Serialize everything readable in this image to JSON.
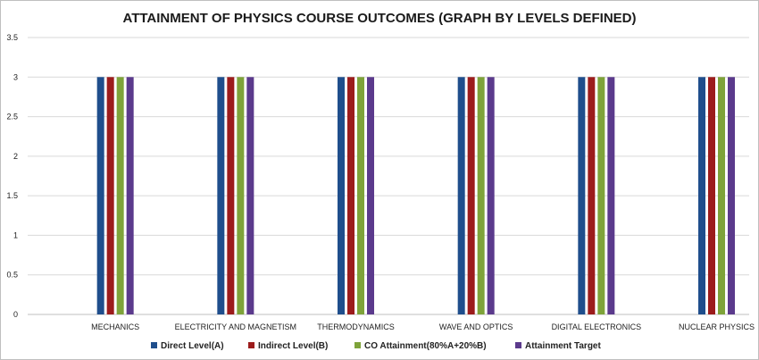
{
  "chart_data": {
    "type": "bar",
    "title": "ATTAINMENT OF PHYSICS COURSE OUTCOMES (GRAPH BY LEVELS DEFINED)",
    "categories": [
      "MECHANICS",
      "ELECTRICITY AND MAGNETISM",
      "THERMODYNAMICS",
      "WAVE AND OPTICS",
      "DIGITAL ELECTRONICS",
      "NUCLEAR PHYSICS"
    ],
    "series": [
      {
        "name": "Direct Level(A)",
        "color": "#1f4e8c",
        "values": [
          3,
          3,
          3,
          3,
          3,
          3
        ]
      },
      {
        "name": "Indirect Level(B)",
        "color": "#9c1c1c",
        "values": [
          3,
          3,
          3,
          3,
          3,
          3
        ]
      },
      {
        "name": "CO Attainment(80%A+20%B)",
        "color": "#7ea33a",
        "values": [
          3,
          3,
          3,
          3,
          3,
          3
        ]
      },
      {
        "name": "Attainment Target",
        "color": "#5b3a8c",
        "values": [
          3,
          3,
          3,
          3,
          3,
          3
        ]
      }
    ],
    "y_ticks": [
      "0",
      "0.5",
      "1",
      "1.5",
      "2",
      "2.5",
      "3",
      "3.5"
    ],
    "ylim": [
      0,
      3.5
    ],
    "xlabel": "",
    "ylabel": "",
    "grid": true,
    "legend_position": "bottom"
  }
}
